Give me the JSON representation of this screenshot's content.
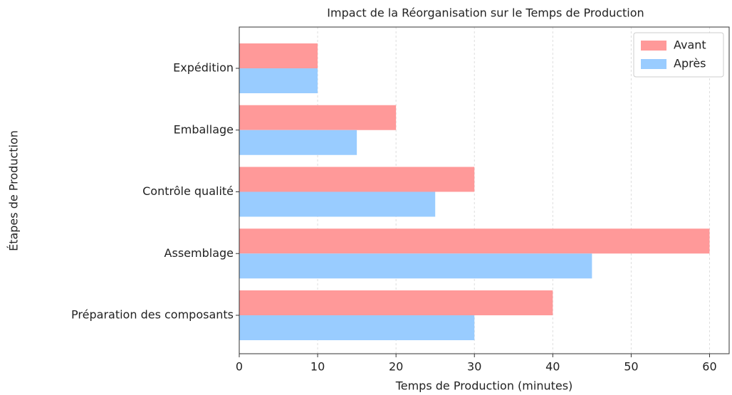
{
  "chart_data": {
    "type": "hbar",
    "title": "Impact de la Réorganisation sur le Temps de Production",
    "xlabel": "Temps de Production (minutes)",
    "ylabel": "Étapes de Production",
    "categories": [
      "Préparation des composants",
      "Assemblage",
      "Contrôle qualité",
      "Emballage",
      "Expédition"
    ],
    "series": [
      {
        "name": "Avant",
        "color": "#ff9999",
        "values": [
          40,
          60,
          30,
          20,
          10
        ]
      },
      {
        "name": "Après",
        "color": "#99ccff",
        "values": [
          30,
          45,
          25,
          15,
          10
        ]
      }
    ],
    "xlim": [
      0,
      62.5
    ],
    "xticks": [
      0,
      10,
      20,
      30,
      40,
      50,
      60
    ],
    "grid": true,
    "legend": "upper right"
  }
}
